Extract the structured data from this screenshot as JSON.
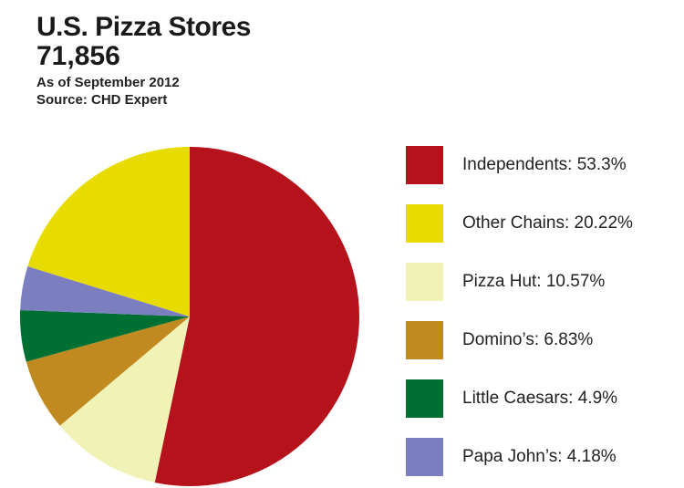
{
  "header": {
    "title": "U.S. Pizza Stores",
    "total": "71,856",
    "subtitle": "As of September 2012",
    "source": "Source: CHD Expert"
  },
  "legend": [
    {
      "label": "Independents: 53.3%"
    },
    {
      "label": "Other Chains: 20.22%"
    },
    {
      "label": "Pizza Hut: 10.57%"
    },
    {
      "label": "Domino’s: 6.83%"
    },
    {
      "label": "Little Caesars: 4.9%"
    },
    {
      "label": "Papa John’s: 4.18%"
    }
  ],
  "chart_data": {
    "type": "pie",
    "title": "U.S. Pizza Stores",
    "subtitle": "As of September 2012",
    "total_stores": 71856,
    "slices": [
      {
        "name": "Independents",
        "value": 53.3,
        "color": "#b5121b"
      },
      {
        "name": "Pizza Hut",
        "value": 10.57,
        "color": "#f1f2b6"
      },
      {
        "name": "Domino’s",
        "value": 6.83,
        "color": "#c18a20"
      },
      {
        "name": "Little Caesars",
        "value": 4.9,
        "color": "#007032"
      },
      {
        "name": "Papa John’s",
        "value": 4.18,
        "color": "#7b7fc0"
      },
      {
        "name": "Other Chains",
        "value": 20.22,
        "color": "#e8db00"
      }
    ],
    "start_angle": "12 o'clock",
    "direction": "clockwise",
    "legend_position": "right"
  }
}
